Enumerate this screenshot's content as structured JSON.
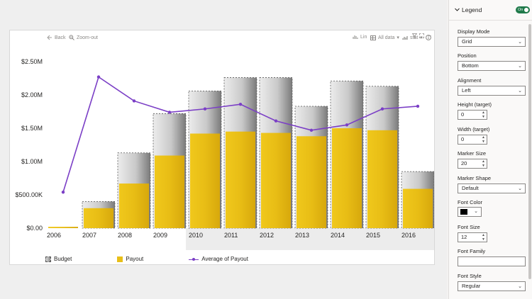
{
  "toolbar": {
    "back_label": "Back",
    "zoom_out_label": "Zoom-out",
    "lin_label": "Lin",
    "all_data_label": "All data",
    "stat_label": "stat"
  },
  "legend_items": [
    {
      "label": "Budget"
    },
    {
      "label": "Payout"
    },
    {
      "label": "Average of Payout"
    }
  ],
  "chart_data": {
    "type": "bar",
    "categories": [
      "2006",
      "2007",
      "2008",
      "2009",
      "2010",
      "2011",
      "2012",
      "2013",
      "2014",
      "2015",
      "2016"
    ],
    "series": [
      {
        "name": "Budget",
        "type": "bar",
        "values": [
          0,
          0.4,
          1.13,
          1.72,
          2.06,
          2.26,
          2.26,
          1.83,
          2.21,
          2.13,
          0.85
        ]
      },
      {
        "name": "Payout",
        "type": "bar",
        "values": [
          0.02,
          0.3,
          0.67,
          1.09,
          1.42,
          1.45,
          1.43,
          1.38,
          1.5,
          1.47,
          0.59
        ]
      },
      {
        "name": "Average of Payout",
        "type": "line",
        "values": [
          0.54,
          2.27,
          1.91,
          1.74,
          1.79,
          1.86,
          1.61,
          1.47,
          1.55,
          1.79,
          1.83
        ]
      }
    ],
    "unit": "$M",
    "ylim": [
      0,
      2.5
    ],
    "y_ticks": [
      {
        "value": 2.5,
        "label": "$2.50M"
      },
      {
        "value": 2.0,
        "label": "$2.00M"
      },
      {
        "value": 1.5,
        "label": "$1.50M"
      },
      {
        "value": 1.0,
        "label": "$1.00M"
      },
      {
        "value": 0.5,
        "label": "$500.00K"
      },
      {
        "value": 0.0,
        "label": "$0.00"
      }
    ],
    "legend_position": "bottom",
    "colors": {
      "budget_light": "#e2e2e2",
      "budget_dark": "#7d7d7d",
      "payout": "#e8bf18",
      "payout_dark": "#d4a80e",
      "line": "#7b3fc6"
    },
    "grid": false
  },
  "pane": {
    "section_title": "Legend",
    "toggle_label": "On",
    "display_mode": {
      "label": "Display Mode",
      "value": "Grid"
    },
    "position": {
      "label": "Position",
      "value": "Bottom"
    },
    "alignment": {
      "label": "Alignment",
      "value": "Left"
    },
    "height": {
      "label": "Height (target)",
      "value": "0"
    },
    "width": {
      "label": "Width (target)",
      "value": "0"
    },
    "marker_size": {
      "label": "Marker Size",
      "value": "20"
    },
    "marker_shape": {
      "label": "Marker Shape",
      "value": "Default"
    },
    "font_color": {
      "label": "Font Color",
      "value": "#000000"
    },
    "font_size": {
      "label": "Font Size",
      "value": "12"
    },
    "font_family": {
      "label": "Font Family",
      "value": ""
    },
    "font_style": {
      "label": "Font Style",
      "value": "Regular"
    }
  }
}
